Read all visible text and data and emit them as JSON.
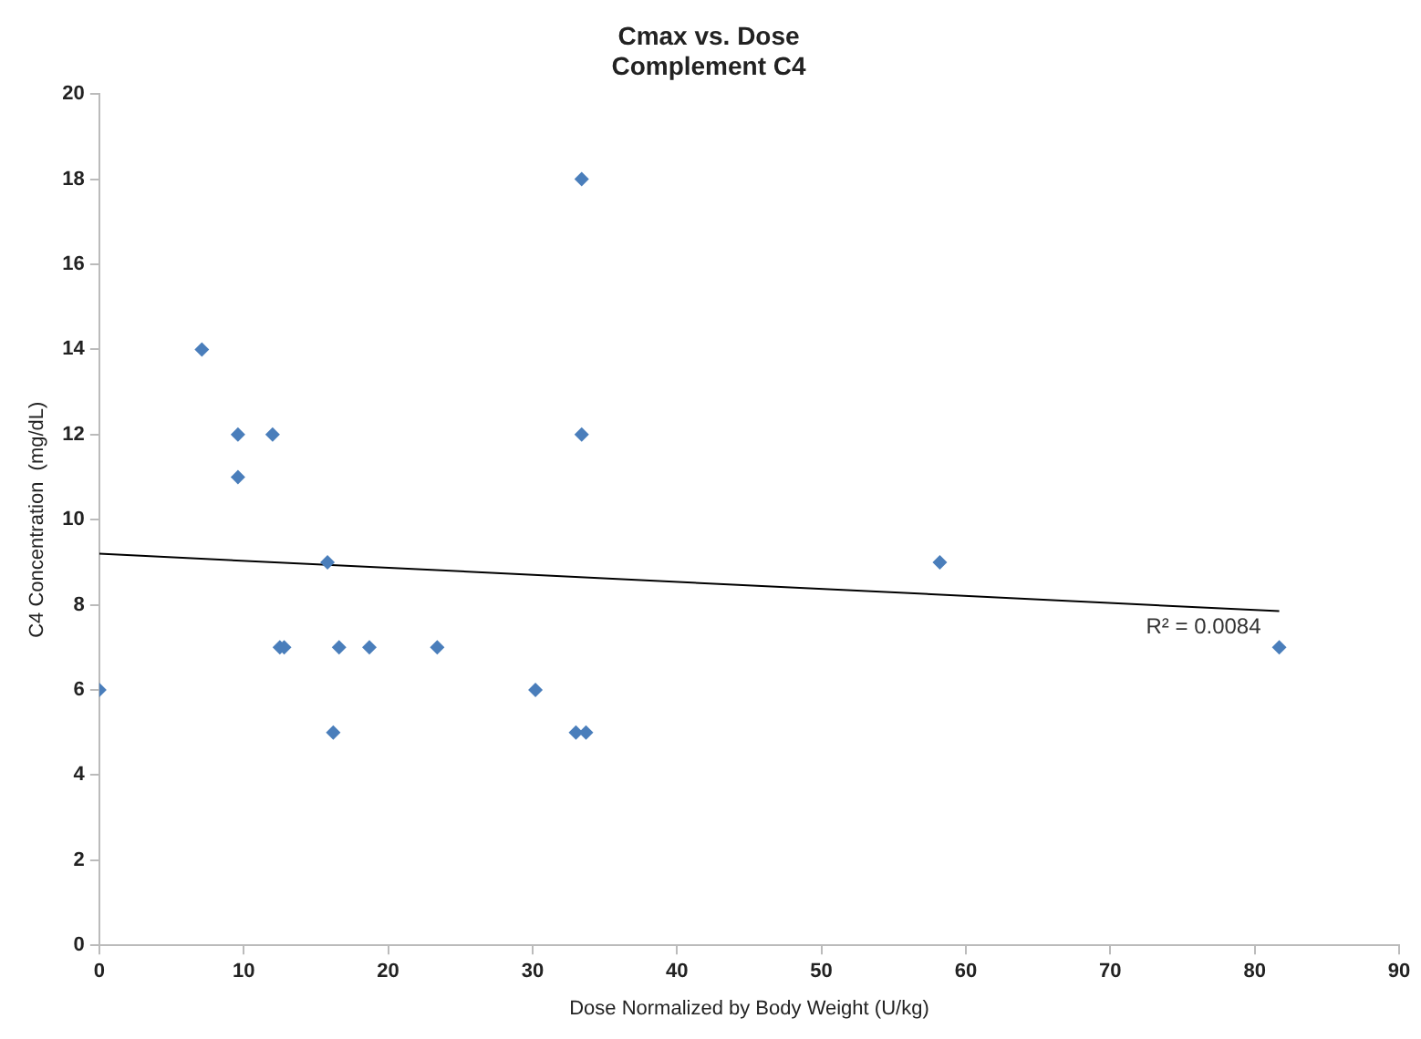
{
  "chart_data": {
    "type": "scatter",
    "title": "Cmax vs. Dose\nComplement C4",
    "xlabel": "Dose Normalized by Body Weight (U/kg)",
    "ylabel": "C4 Concentration  (mg/dL)",
    "series": [
      {
        "marker": "diamond",
        "color": "#4a7ebb",
        "x": [
          0,
          7.1,
          9.6,
          9.6,
          12.0,
          12.5,
          12.8,
          15.8,
          16.6,
          16.2,
          18.7,
          23.4,
          30.2,
          33.0,
          33.7,
          33.4,
          33.4,
          58.2,
          81.7
        ],
        "values": [
          6,
          14,
          12,
          11,
          12,
          7,
          7,
          9,
          7,
          5,
          7,
          7,
          6,
          5,
          5,
          12,
          18,
          9,
          7
        ]
      },
      {
        "type": "line",
        "marker": "none",
        "color": "#000000",
        "x": [
          0,
          81.7
        ],
        "values": [
          9.2,
          7.85
        ]
      }
    ],
    "xlim": [
      0,
      90
    ],
    "xticks": [
      0,
      10,
      20,
      30,
      40,
      50,
      60,
      70,
      80,
      90
    ],
    "ylim": [
      0,
      20
    ],
    "yticks": [
      0,
      2,
      4,
      6,
      8,
      10,
      12,
      14,
      16,
      18,
      20
    ],
    "grid": false,
    "legend": false,
    "annotations": [
      "R² = 0.0084"
    ]
  }
}
